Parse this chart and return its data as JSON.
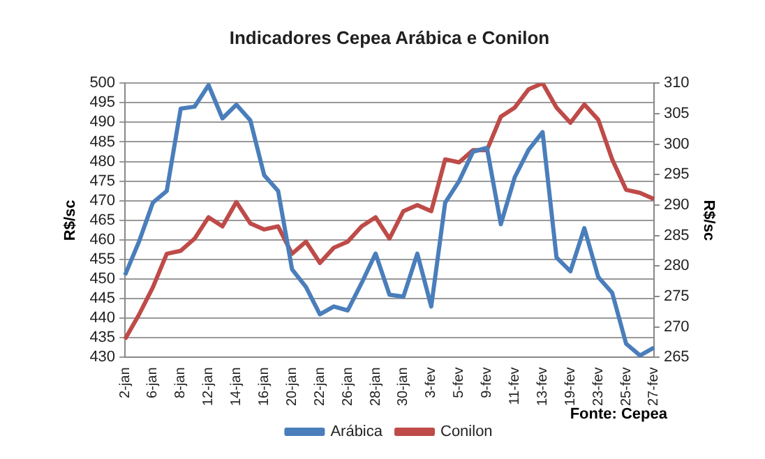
{
  "chart_data": {
    "type": "line",
    "title": "Indicadores Cepea Arábica e Conilon",
    "categories": [
      "2-jan",
      null,
      "6-jan",
      null,
      "8-jan",
      null,
      "12-jan",
      null,
      "14-jan",
      null,
      "16-jan",
      null,
      "20-jan",
      null,
      "22-jan",
      null,
      "26-jan",
      null,
      "28-jan",
      null,
      "30-jan",
      null,
      "3-fev",
      null,
      "5-fev",
      null,
      "9-fev",
      null,
      "11-fev",
      null,
      "13-fev",
      null,
      "19-fev",
      null,
      "23-fev",
      null,
      "25-fev",
      null,
      "27-fev"
    ],
    "series": [
      {
        "name": "Arábica",
        "color": "#4a7ebb",
        "values": [
          451,
          459.5,
          469.5,
          472.5,
          493.5,
          494,
          499.5,
          491,
          494.5,
          490.5,
          476.5,
          472.5,
          452.5,
          448,
          441,
          443,
          442,
          449,
          456.5,
          446,
          445.5,
          456.5,
          443,
          469.5,
          475,
          482.5,
          483.5,
          464,
          476,
          483,
          487.5,
          455.5,
          452,
          463,
          450.5,
          446.5,
          433.5,
          430.5,
          432.5
        ]
      },
      {
        "name": "Conilon",
        "color": "#be4b48",
        "axis": "y2",
        "values": [
          268,
          272,
          276.5,
          282,
          282.5,
          284.5,
          288,
          286.5,
          290.5,
          287,
          286,
          286.5,
          282,
          284,
          280.5,
          283,
          284,
          286.5,
          288,
          284.5,
          289,
          290,
          289,
          297.5,
          297,
          299,
          299,
          304.5,
          306,
          309,
          310,
          306,
          303.5,
          306.5,
          304,
          297.5,
          292.5,
          292,
          291
        ]
      }
    ],
    "ylabel": "R$/sc",
    "y2label": "R$/sc",
    "ylim": [
      430,
      500
    ],
    "yticks": [
      430,
      435,
      440,
      445,
      450,
      455,
      460,
      465,
      470,
      475,
      480,
      485,
      490,
      495,
      500
    ],
    "y2lim": [
      265,
      310
    ],
    "y2ticks": [
      265,
      270,
      275,
      280,
      285,
      290,
      295,
      300,
      305,
      310
    ],
    "grid": "y",
    "legend": "bottom",
    "marker": "none",
    "line_style": "solid",
    "annotations": [
      "Fonte: Cepea"
    ]
  }
}
